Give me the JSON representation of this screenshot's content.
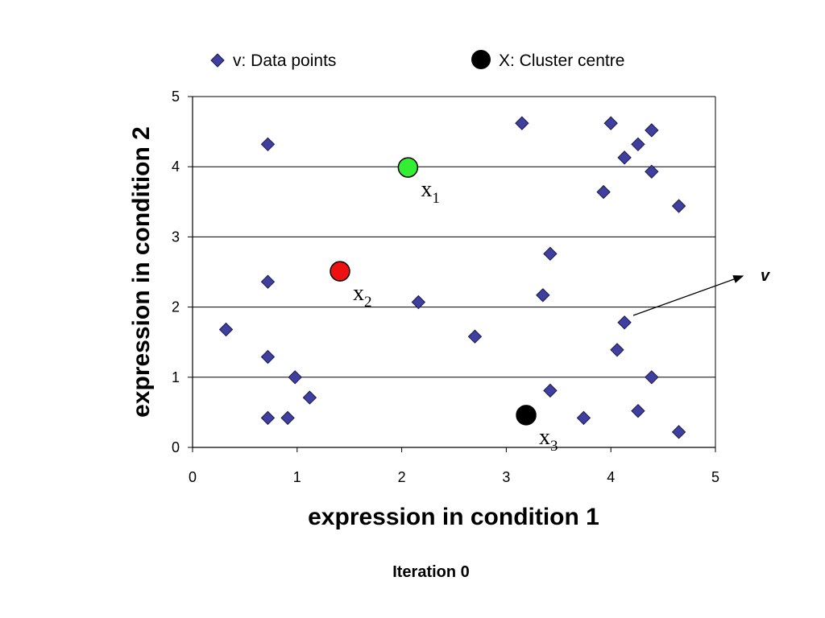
{
  "legend": {
    "data_points": "v: Data points",
    "cluster_centre": "X: Cluster centre"
  },
  "caption": "Iteration 0",
  "arrow_label": "v",
  "colors": {
    "data_point_fill": "#3f3f9f",
    "data_point_stroke": "#1a1a4a",
    "centre_1": "#33ee33",
    "centre_2": "#ee1111",
    "centre_3": "#000000",
    "gridline": "#000000"
  },
  "chart_data": {
    "type": "scatter",
    "xlabel": "expression in condition 1",
    "ylabel": "expression in condition 2",
    "xlim": [
      0,
      5
    ],
    "ylim": [
      0,
      5
    ],
    "xticks": [
      "0",
      "1",
      "2",
      "3",
      "4",
      "5"
    ],
    "yticks": [
      "0",
      "1",
      "2",
      "3",
      "4",
      "5"
    ],
    "grid": "horizontal major gridlines",
    "legend_position": "top",
    "series": [
      {
        "name": "v: Data points",
        "marker": "diamond",
        "points": [
          [
            0.72,
            4.32
          ],
          [
            0.72,
            2.36
          ],
          [
            0.32,
            1.68
          ],
          [
            0.72,
            1.29
          ],
          [
            0.98,
            1.0
          ],
          [
            1.12,
            0.71
          ],
          [
            0.72,
            0.42
          ],
          [
            0.91,
            0.42
          ],
          [
            2.16,
            2.07
          ],
          [
            2.7,
            1.58
          ],
          [
            3.15,
            4.62
          ],
          [
            3.35,
            2.17
          ],
          [
            3.42,
            2.76
          ],
          [
            3.42,
            0.81
          ],
          [
            3.74,
            0.42
          ],
          [
            3.93,
            3.64
          ],
          [
            4.0,
            4.62
          ],
          [
            4.06,
            1.39
          ],
          [
            4.13,
            1.78
          ],
          [
            4.13,
            4.13
          ],
          [
            4.26,
            4.32
          ],
          [
            4.26,
            0.52
          ],
          [
            4.39,
            4.52
          ],
          [
            4.39,
            3.93
          ],
          [
            4.39,
            1.0
          ],
          [
            4.65,
            3.44
          ],
          [
            4.65,
            0.22
          ]
        ]
      },
      {
        "name": "X: Cluster centre",
        "marker": "circle",
        "points": [
          {
            "label": "x",
            "sub": "1",
            "x": 2.06,
            "y": 3.99,
            "color": "#33ee33"
          },
          {
            "label": "x",
            "sub": "2",
            "x": 1.41,
            "y": 2.51,
            "color": "#ee1111"
          },
          {
            "label": "x",
            "sub": "3",
            "x": 3.19,
            "y": 0.46,
            "color": "#000000"
          }
        ]
      }
    ]
  }
}
